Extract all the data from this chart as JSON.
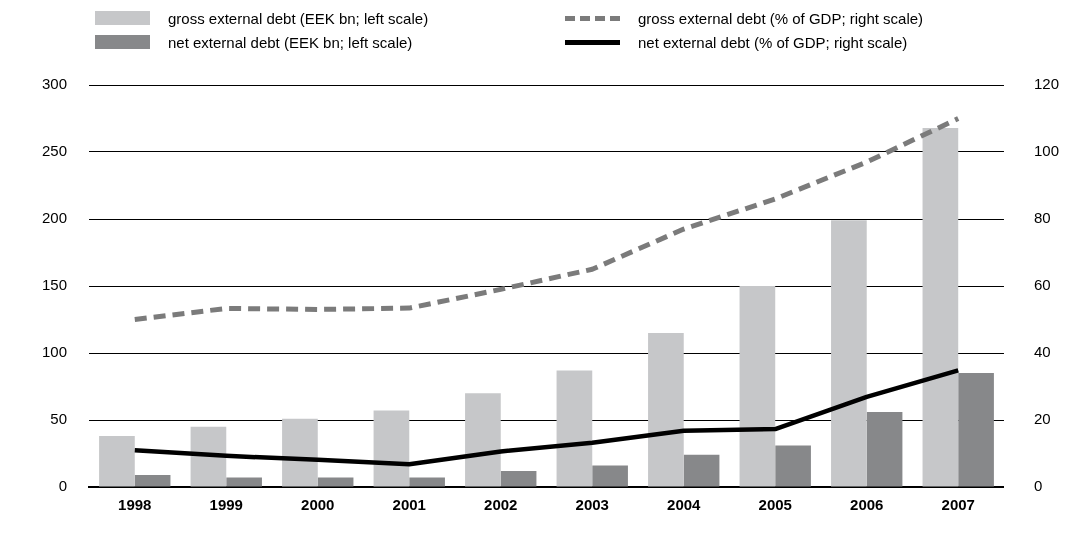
{
  "chart_data": {
    "type": "bar",
    "categories": [
      "1998",
      "1999",
      "2000",
      "2001",
      "2002",
      "2003",
      "2004",
      "2005",
      "2006",
      "2007"
    ],
    "series": [
      {
        "name": "gross external debt (EEK bn; left scale)",
        "color": "#c6c7c9",
        "values": [
          38,
          45,
          51,
          57,
          70,
          87,
          115,
          150,
          199,
          268
        ]
      },
      {
        "name": "net external debt (EEK bn; left scale)",
        "color": "#87888a",
        "values": [
          9,
          7,
          7,
          7,
          12,
          16,
          24,
          31,
          56,
          85
        ]
      },
      {
        "name": "gross external debt (% of GDP; right scale)",
        "type": "line",
        "axis": "y2",
        "line_style": "dashed",
        "color": "#7b7b7b",
        "values": [
          50,
          53.3,
          53,
          53.4,
          59,
          65,
          77,
          86,
          97,
          110
        ]
      },
      {
        "name": "net external debt (% of GDP; right scale)",
        "type": "line",
        "axis": "y2",
        "line_style": "solid",
        "color": "#000000",
        "values": [
          11,
          9.3,
          8.1,
          6.8,
          10.6,
          13.2,
          16.8,
          17.3,
          26.9,
          34.8
        ]
      }
    ],
    "ylim": [
      0,
      300
    ],
    "yticks": [
      0,
      50,
      100,
      150,
      200,
      250,
      300
    ],
    "y2lim": [
      0,
      120
    ],
    "y2ticks": [
      0,
      20,
      40,
      60,
      80,
      100,
      120
    ],
    "grid": "y",
    "legend": "top",
    "marker": "none"
  }
}
